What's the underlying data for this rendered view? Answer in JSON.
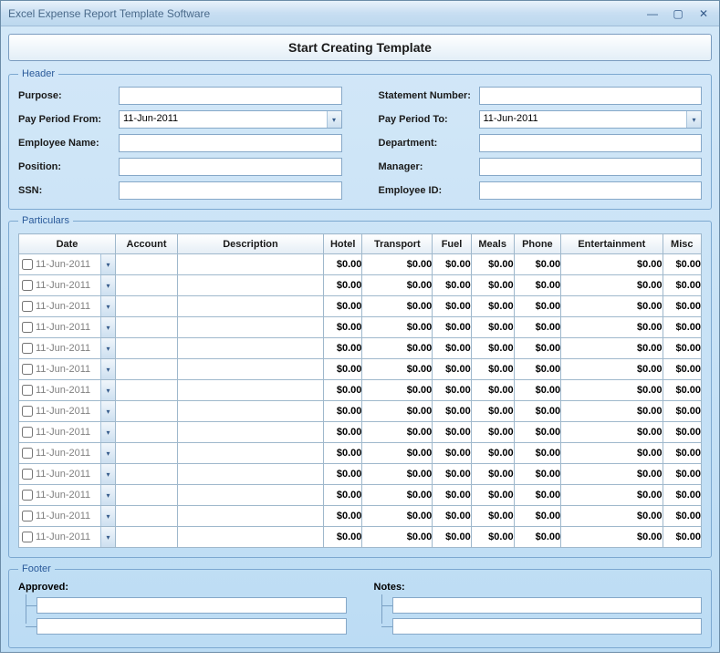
{
  "window": {
    "title": "Excel Expense Report Template Software"
  },
  "startButton": "Start Creating Template",
  "header": {
    "legend": "Header",
    "purpose": {
      "label": "Purpose:",
      "value": ""
    },
    "payFrom": {
      "label": "Pay Period From:",
      "value": "11-Jun-2011"
    },
    "empName": {
      "label": "Employee Name:",
      "value": ""
    },
    "position": {
      "label": "Position:",
      "value": ""
    },
    "ssn": {
      "label": "SSN:",
      "value": ""
    },
    "stmtNum": {
      "label": "Statement Number:",
      "value": ""
    },
    "payTo": {
      "label": "Pay Period To:",
      "value": "11-Jun-2011"
    },
    "dept": {
      "label": "Department:",
      "value": ""
    },
    "manager": {
      "label": "Manager:",
      "value": ""
    },
    "empId": {
      "label": "Employee ID:",
      "value": ""
    }
  },
  "particulars": {
    "legend": "Particulars",
    "columns": [
      "Date",
      "Account",
      "Description",
      "Hotel",
      "Transport",
      "Fuel",
      "Meals",
      "Phone",
      "Entertainment",
      "Misc"
    ],
    "defaultDate": "11-Jun-2011",
    "defaultAmount": "$0.00",
    "rowCount": 14
  },
  "footer": {
    "legend": "Footer",
    "approved": "Approved:",
    "notes": "Notes:"
  },
  "colors": {
    "windowBg": "#bcdcf4",
    "border": "#86a8c8",
    "legendText": "#2a5a9a"
  }
}
